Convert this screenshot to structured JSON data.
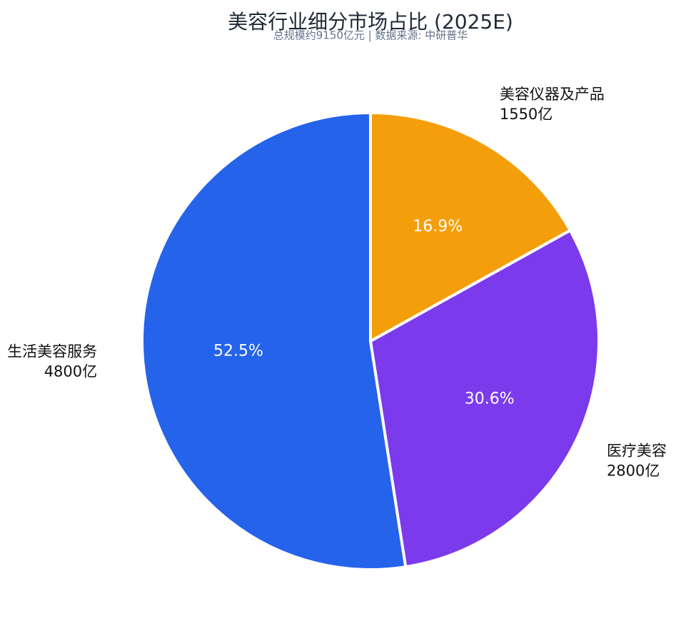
{
  "chart_data": {
    "type": "pie",
    "title": "美容行业细分市场占比 (2025E)",
    "subtitle": "总规模约9150亿元 | 数据来源: 中研普华",
    "categories": [
      "美容仪器及产品",
      "医疗美容",
      "生活美容服务"
    ],
    "values": [
      1550,
      2800,
      4800
    ],
    "value_labels": [
      "1550亿",
      "2800亿",
      "4800亿"
    ],
    "percent_labels": [
      "16.9%",
      "30.6%",
      "52.5%"
    ],
    "colors": [
      "#f59e0b",
      "#7c3aed",
      "#2563eb"
    ]
  }
}
